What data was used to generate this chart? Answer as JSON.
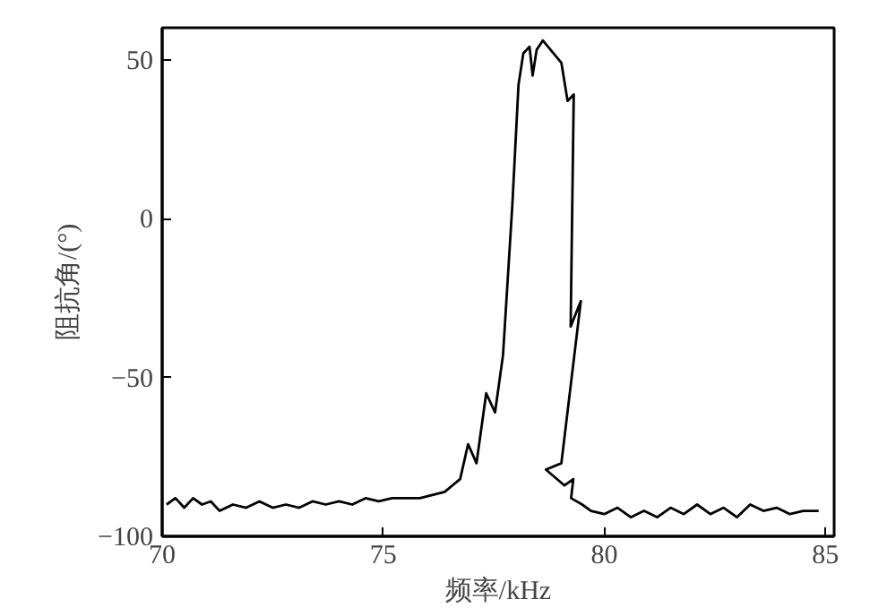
{
  "chart_data": {
    "type": "line",
    "xlabel": "频率/kHz",
    "ylabel": "阻抗角/(°)",
    "xlim": [
      70,
      85.2
    ],
    "ylim": [
      -100,
      60
    ],
    "xticks": [
      70,
      75,
      80,
      85
    ],
    "yticks": [
      -100,
      -50,
      0,
      50
    ],
    "grid": false,
    "marker": "none",
    "line_style": "solid",
    "series": [
      {
        "color": "#000000",
        "x": [
          70.1,
          70.3,
          70.5,
          70.7,
          70.9,
          71.1,
          71.3,
          71.6,
          71.9,
          72.2,
          72.5,
          72.8,
          73.1,
          73.4,
          73.7,
          74.0,
          74.3,
          74.6,
          74.9,
          75.2,
          75.5,
          75.83,
          76.39,
          76.74,
          76.92,
          77.11,
          77.33,
          77.53,
          77.71,
          77.92,
          78.06,
          78.17,
          78.31,
          78.38,
          78.47,
          78.61,
          79.03,
          79.17,
          79.31,
          79.24,
          79.47,
          79.03,
          78.68,
          79.1,
          79.3,
          79.25,
          79.5,
          79.7,
          80.0,
          80.3,
          80.6,
          80.9,
          81.2,
          81.5,
          81.8,
          82.1,
          82.4,
          82.7,
          83.0,
          83.3,
          83.6,
          83.9,
          84.2,
          84.5,
          84.85
        ],
        "values": [
          -90,
          -88,
          -91,
          -88,
          -90,
          -89,
          -92,
          -90,
          -91,
          -89,
          -91,
          -90,
          -91,
          -89,
          -90,
          -89,
          -90,
          -88,
          -89,
          -88,
          -88,
          -88,
          -86,
          -82,
          -71,
          -77,
          -55,
          -61,
          -43,
          4,
          42,
          52,
          54,
          45,
          53,
          56,
          49,
          37,
          39,
          -34,
          -26,
          -77,
          -79,
          -84,
          -82,
          -88,
          -90,
          -92,
          -93,
          -91,
          -94,
          -92,
          -94,
          -91,
          -93,
          -90,
          -93,
          -91,
          -94,
          -90,
          -92,
          -91,
          -93,
          -92,
          -92
        ]
      }
    ]
  }
}
